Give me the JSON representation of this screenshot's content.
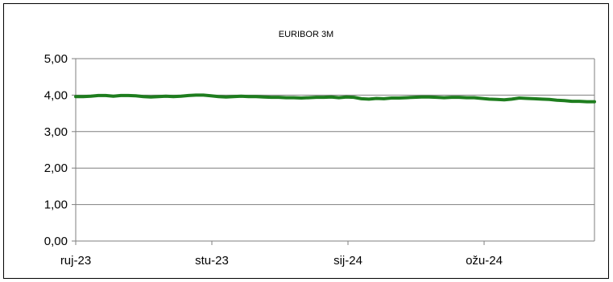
{
  "chart_data": {
    "type": "line",
    "title": "EURIBOR 3M",
    "xlabel": "",
    "ylabel": "",
    "ylim": [
      0,
      5
    ],
    "y_ticks": [
      "0,00",
      "1,00",
      "2,00",
      "3,00",
      "4,00",
      "5,00"
    ],
    "x_tick_labels": [
      "ruj-23",
      "stu-23",
      "sij-24",
      "ožu-24"
    ],
    "grid": true,
    "legend": "none",
    "colors": {
      "line": "#1e7d1e",
      "grid": "#7f7f7f",
      "frame": "#7f7f7f"
    },
    "series": [
      {
        "values": [
          3.96,
          3.96,
          3.97,
          3.99,
          3.99,
          3.97,
          3.99,
          3.99,
          3.98,
          3.96,
          3.95,
          3.96,
          3.97,
          3.96,
          3.97,
          3.99,
          4.0,
          4.0,
          3.98,
          3.96,
          3.95,
          3.96,
          3.97,
          3.96,
          3.96,
          3.95,
          3.94,
          3.94,
          3.93,
          3.93,
          3.92,
          3.93,
          3.94,
          3.94,
          3.95,
          3.93,
          3.95,
          3.94,
          3.9,
          3.89,
          3.91,
          3.9,
          3.92,
          3.92,
          3.93,
          3.94,
          3.95,
          3.95,
          3.94,
          3.93,
          3.94,
          3.94,
          3.93,
          3.93,
          3.91,
          3.89,
          3.88,
          3.87,
          3.89,
          3.92,
          3.91,
          3.9,
          3.89,
          3.88,
          3.86,
          3.85,
          3.83,
          3.83,
          3.82,
          3.82
        ]
      }
    ]
  }
}
